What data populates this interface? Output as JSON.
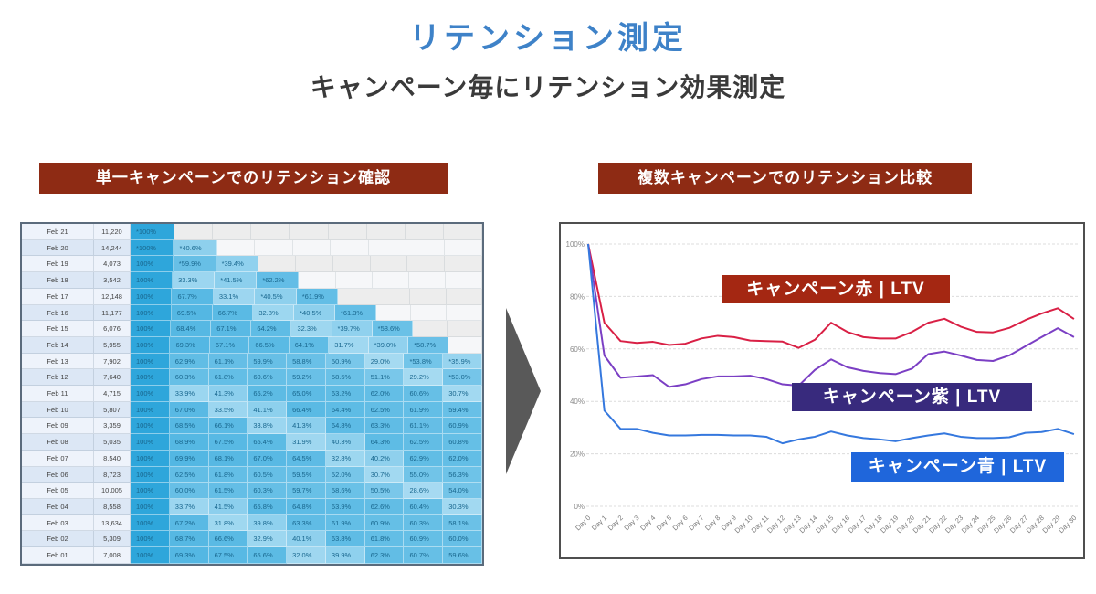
{
  "page": {
    "title": "リテンション測定",
    "subtitle": "キャンペーン毎にリテンション効果測定"
  },
  "left_panel": {
    "banner": "単一キャンペーンでのリテンション確認"
  },
  "right_panel": {
    "banner": "複数キャンペーンでのリテンション比較"
  },
  "colors": {
    "title_blue": "#3E82C8",
    "banner_maroon": "#8E2B14",
    "arrow_gray": "#595959",
    "heat_strong": "#2ea6db",
    "heat_light": "#b3e0f4",
    "grid_gray": "#dcdcdc"
  },
  "chart_data": [
    {
      "type": "table",
      "title": "単一キャンペーンでのリテンション確認",
      "rows": [
        {
          "date": "Feb 21",
          "users": "11,220",
          "retention": [
            "*100%"
          ]
        },
        {
          "date": "Feb 20",
          "users": "14,244",
          "retention": [
            "*100%",
            "*40.6%"
          ]
        },
        {
          "date": "Feb 19",
          "users": "4,073",
          "retention": [
            "100%",
            "*59.9%",
            "*39.4%"
          ]
        },
        {
          "date": "Feb 18",
          "users": "3,542",
          "retention": [
            "100%",
            "33.3%",
            "*41.5%",
            "*62.2%"
          ]
        },
        {
          "date": "Feb 17",
          "users": "12,148",
          "retention": [
            "100%",
            "67.7%",
            "33.1%",
            "*40.5%",
            "*61.9%"
          ]
        },
        {
          "date": "Feb 16",
          "users": "11,177",
          "retention": [
            "100%",
            "69.5%",
            "66.7%",
            "32.8%",
            "*40.5%",
            "*61.3%"
          ]
        },
        {
          "date": "Feb 15",
          "users": "6,076",
          "retention": [
            "100%",
            "68.4%",
            "67.1%",
            "64.2%",
            "32.3%",
            "*39.7%",
            "*58.6%"
          ]
        },
        {
          "date": "Feb 14",
          "users": "5,955",
          "retention": [
            "100%",
            "69.3%",
            "67.1%",
            "66.5%",
            "64.1%",
            "31.7%",
            "*39.0%",
            "*58.7%"
          ]
        },
        {
          "date": "Feb 13",
          "users": "7,902",
          "retention": [
            "100%",
            "62.9%",
            "61.1%",
            "59.9%",
            "58.8%",
            "50.9%",
            "29.0%",
            "*53.8%",
            "*35.9%"
          ]
        },
        {
          "date": "Feb 12",
          "users": "7,640",
          "retention": [
            "100%",
            "60.3%",
            "61.8%",
            "60.6%",
            "59.2%",
            "58.5%",
            "51.1%",
            "29.2%",
            "*53.0%"
          ]
        },
        {
          "date": "Feb 11",
          "users": "4,715",
          "retention": [
            "100%",
            "33.9%",
            "41.3%",
            "65.2%",
            "65.0%",
            "63.2%",
            "62.0%",
            "60.6%",
            "30.7%"
          ]
        },
        {
          "date": "Feb 10",
          "users": "5,807",
          "retention": [
            "100%",
            "67.0%",
            "33.5%",
            "41.1%",
            "66.4%",
            "64.4%",
            "62.5%",
            "61.9%",
            "59.4%"
          ]
        },
        {
          "date": "Feb 09",
          "users": "3,359",
          "retention": [
            "100%",
            "68.5%",
            "66.1%",
            "33.8%",
            "41.3%",
            "64.8%",
            "63.3%",
            "61.1%",
            "60.9%"
          ]
        },
        {
          "date": "Feb 08",
          "users": "5,035",
          "retention": [
            "100%",
            "68.9%",
            "67.5%",
            "65.4%",
            "31.9%",
            "40.3%",
            "64.3%",
            "62.5%",
            "60.8%"
          ]
        },
        {
          "date": "Feb 07",
          "users": "8,540",
          "retention": [
            "100%",
            "69.9%",
            "68.1%",
            "67.0%",
            "64.5%",
            "32.8%",
            "40.2%",
            "62.9%",
            "62.0%"
          ]
        },
        {
          "date": "Feb 06",
          "users": "8,723",
          "retention": [
            "100%",
            "62.5%",
            "61.8%",
            "60.5%",
            "59.5%",
            "52.0%",
            "30.7%",
            "55.0%",
            "56.3%"
          ]
        },
        {
          "date": "Feb 05",
          "users": "10,005",
          "retention": [
            "100%",
            "60.0%",
            "61.5%",
            "60.3%",
            "59.7%",
            "58.6%",
            "50.5%",
            "28.6%",
            "54.0%"
          ]
        },
        {
          "date": "Feb 04",
          "users": "8,558",
          "retention": [
            "100%",
            "33.7%",
            "41.5%",
            "65.8%",
            "64.8%",
            "63.9%",
            "62.6%",
            "60.4%",
            "30.3%"
          ]
        },
        {
          "date": "Feb 03",
          "users": "13,634",
          "retention": [
            "100%",
            "67.2%",
            "31.8%",
            "39.8%",
            "63.3%",
            "61.9%",
            "60.9%",
            "60.3%",
            "58.1%"
          ]
        },
        {
          "date": "Feb 02",
          "users": "5,309",
          "retention": [
            "100%",
            "68.7%",
            "66.6%",
            "32.9%",
            "40.1%",
            "63.8%",
            "61.8%",
            "60.9%",
            "60.0%"
          ]
        },
        {
          "date": "Feb 01",
          "users": "7,008",
          "retention": [
            "100%",
            "69.3%",
            "67.5%",
            "65.6%",
            "32.0%",
            "39.9%",
            "62.3%",
            "60.7%",
            "59.6%"
          ]
        }
      ]
    },
    {
      "type": "line",
      "title": "複数キャンペーンでのリテンション比較",
      "ylim": [
        0,
        100
      ],
      "yticks": [
        0,
        20,
        40,
        60,
        80,
        100
      ],
      "ytick_labels": [
        "0%",
        "20%",
        "40%",
        "60%",
        "80%",
        "100%"
      ],
      "grid": true,
      "x_labels": [
        "Day 0",
        "Day 1",
        "Day 2",
        "Day 3",
        "Day 4",
        "Day 5",
        "Day 6",
        "Day 7",
        "Day 8",
        "Day 9",
        "Day 10",
        "Day 11",
        "Day 12",
        "Day 13",
        "Day 14",
        "Day 15",
        "Day 16",
        "Day 17",
        "Day 18",
        "Day 19",
        "Day 20",
        "Day 21",
        "Day 22",
        "Day 23",
        "Day 24",
        "Day 25",
        "Day 26",
        "Day 27",
        "Day 28",
        "Day 29",
        "Day 30"
      ],
      "series": [
        {
          "name": "キャンペーン赤 | LTV",
          "color": "#D92045",
          "box_color": "#A42712",
          "values": [
            100,
            70,
            63,
            62.3,
            62.7,
            61.5,
            62,
            64,
            65,
            64.5,
            63.2,
            63,
            62.8,
            60.4,
            63.5,
            70,
            66.5,
            64.5,
            64,
            64,
            66.5,
            70,
            71.5,
            68.5,
            66.5,
            66.3,
            68,
            71,
            73.5,
            75.5,
            71.4
          ]
        },
        {
          "name": "キャンペーン紫 | LTV",
          "color": "#7B3FC4",
          "box_color": "#382A7D",
          "values": [
            100,
            57.5,
            49,
            49.5,
            50,
            45.5,
            46.5,
            48.5,
            49.5,
            49.5,
            49.8,
            48.5,
            46.5,
            46,
            52,
            56,
            53,
            51.6,
            50.8,
            50.4,
            52.5,
            58,
            59,
            57.5,
            55.8,
            55.4,
            57.5,
            61,
            64.5,
            67.9,
            64.5
          ]
        },
        {
          "name": "キャンペーン青 | LTV",
          "color": "#3578DE",
          "box_color": "#1F66DB",
          "values": [
            100,
            36.5,
            29.5,
            29.5,
            28,
            27,
            27,
            27.2,
            27.2,
            27,
            27,
            26.5,
            24,
            25.5,
            26.5,
            28.5,
            27,
            26,
            25.5,
            24.8,
            26,
            27,
            27.8,
            26.5,
            26,
            26,
            26.3,
            28,
            28.3,
            29.5,
            27.5
          ]
        }
      ]
    }
  ]
}
